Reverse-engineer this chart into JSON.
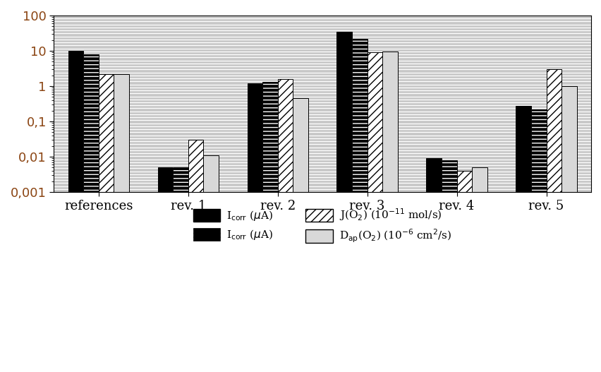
{
  "categories": [
    "references",
    "rev. 1",
    "rev. 2",
    "rev. 3",
    "rev. 4",
    "rev. 5"
  ],
  "series": {
    "Icorr": [
      10.0,
      0.005,
      1.2,
      35.0,
      0.009,
      0.28
    ],
    "Icat": [
      8.0,
      0.005,
      1.3,
      22.0,
      0.008,
      0.22
    ],
    "JO2": [
      2.2,
      0.03,
      1.6,
      9.0,
      0.004,
      3.0
    ],
    "DapO2": [
      2.2,
      0.011,
      0.45,
      9.5,
      0.005,
      1.0
    ]
  },
  "ylim": [
    0.001,
    100
  ],
  "bar_width": 0.17,
  "background_color": "#c8c8c8",
  "tick_color": "#8B4513",
  "tick_label_fontsize": 13,
  "legend_fontsize": 11,
  "n_hlines": 60,
  "hline_color": "#ffffff",
  "hline_lw": 0.9
}
